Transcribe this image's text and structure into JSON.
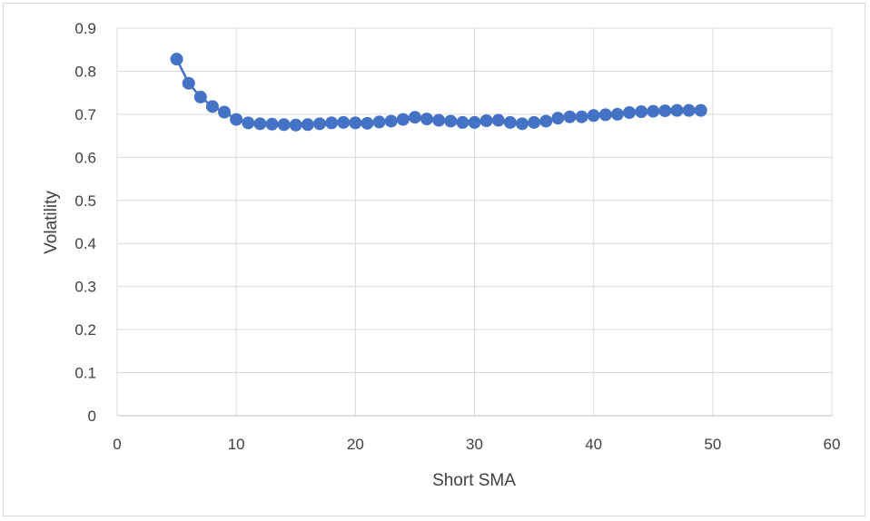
{
  "chart_data": {
    "type": "line",
    "title": "",
    "xlabel": "Short SMA",
    "ylabel": "Volatility",
    "xlim": [
      0,
      60
    ],
    "ylim": [
      0,
      0.9
    ],
    "x_ticks": [
      "0",
      "10",
      "20",
      "30",
      "40",
      "50",
      "60"
    ],
    "y_ticks": [
      "0",
      "0.1",
      "0.2",
      "0.3",
      "0.4",
      "0.5",
      "0.6",
      "0.7",
      "0.8",
      "0.9"
    ],
    "grid": true,
    "legend": "none",
    "series": [
      {
        "color": "#4472c4",
        "marker": "circle",
        "x": [
          5,
          6,
          7,
          8,
          9,
          10,
          11,
          12,
          13,
          14,
          15,
          16,
          17,
          18,
          19,
          20,
          21,
          22,
          23,
          24,
          25,
          26,
          27,
          28,
          29,
          30,
          31,
          32,
          33,
          34,
          35,
          36,
          37,
          38,
          39,
          40,
          41,
          42,
          43,
          44,
          45,
          46,
          47,
          48,
          49
        ],
        "y": [
          0.828,
          0.772,
          0.74,
          0.718,
          0.705,
          0.688,
          0.68,
          0.678,
          0.677,
          0.676,
          0.675,
          0.676,
          0.678,
          0.68,
          0.681,
          0.68,
          0.679,
          0.682,
          0.684,
          0.688,
          0.693,
          0.689,
          0.686,
          0.684,
          0.681,
          0.681,
          0.685,
          0.686,
          0.681,
          0.678,
          0.681,
          0.684,
          0.691,
          0.694,
          0.694,
          0.697,
          0.699,
          0.7,
          0.704,
          0.706,
          0.707,
          0.708,
          0.709,
          0.709,
          0.709
        ]
      }
    ]
  }
}
